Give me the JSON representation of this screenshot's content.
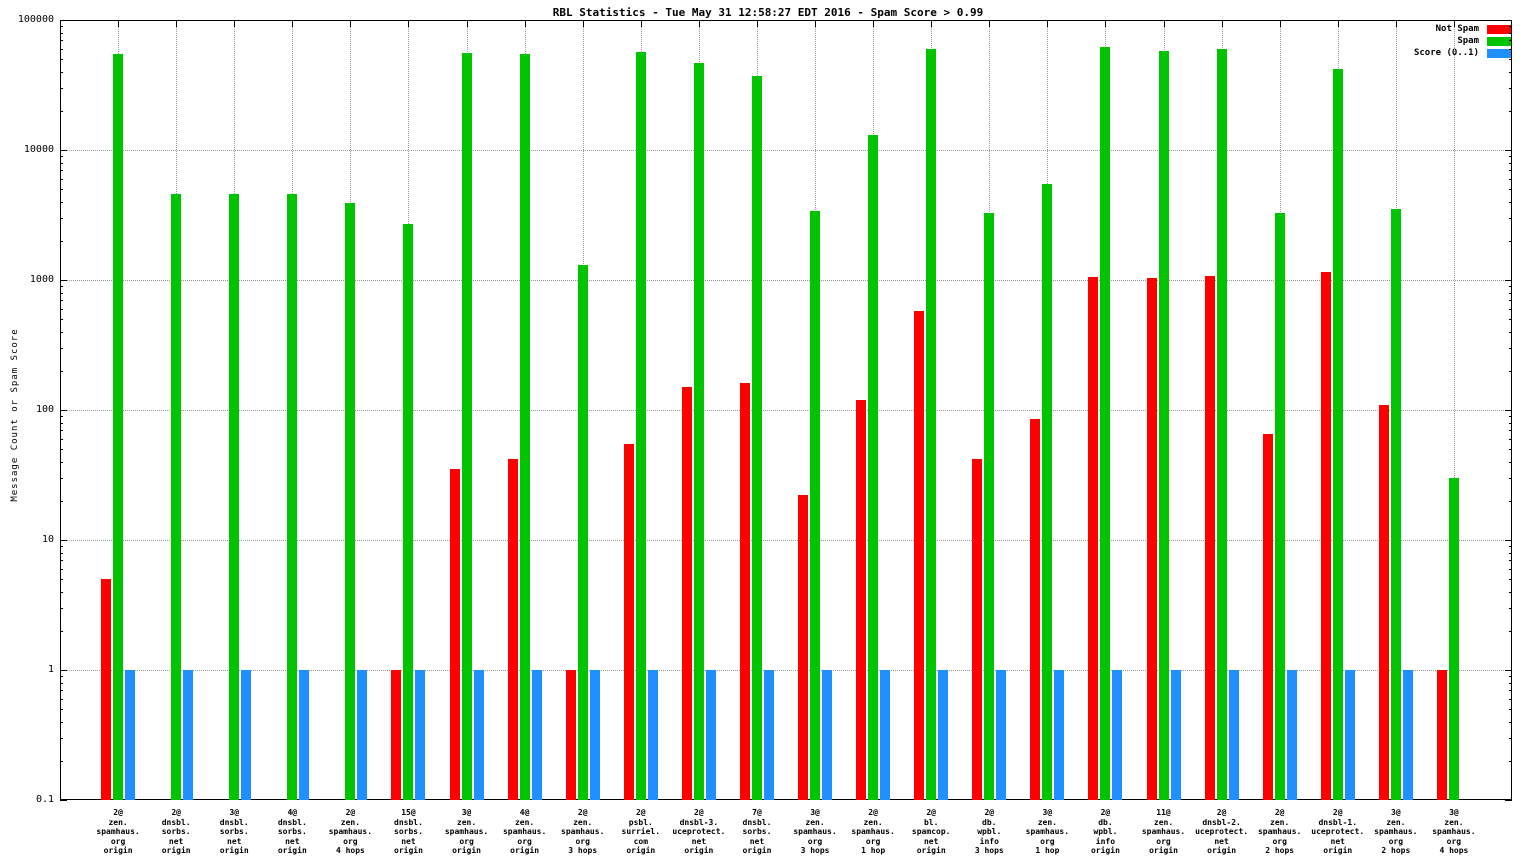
{
  "chart_data": {
    "type": "bar",
    "title": "RBL Statistics - Tue May 31 12:58:27 EDT 2016 - Spam Score > 0.99",
    "ylabel": "Message Count or Spam Score",
    "yscale": "log",
    "ylim": [
      0.1,
      100000
    ],
    "yticks": [
      "100000",
      "10000",
      "1000",
      "100",
      "10",
      "1",
      "0.1"
    ],
    "grid": true,
    "legend_position": "top-right",
    "legend": [
      {
        "name": "Not Spam",
        "color": "#ff0000"
      },
      {
        "name": "Spam",
        "color": "#00c400"
      },
      {
        "name": "Score (0..1)",
        "color": "#1e90ff"
      }
    ],
    "categories": [
      {
        "lines": [
          "2@",
          "zen.",
          "spamhaus.",
          "org",
          "origin"
        ]
      },
      {
        "lines": [
          "2@",
          "dnsbl.",
          "sorbs.",
          "net",
          "origin"
        ]
      },
      {
        "lines": [
          "3@",
          "dnsbl.",
          "sorbs.",
          "net",
          "origin"
        ]
      },
      {
        "lines": [
          "4@",
          "dnsbl.",
          "sorbs.",
          "net",
          "origin"
        ]
      },
      {
        "lines": [
          "2@",
          "zen.",
          "spamhaus.",
          "org",
          "4 hops"
        ]
      },
      {
        "lines": [
          "15@",
          "dnsbl.",
          "sorbs.",
          "net",
          "origin"
        ]
      },
      {
        "lines": [
          "3@",
          "zen.",
          "spamhaus.",
          "org",
          "origin"
        ]
      },
      {
        "lines": [
          "4@",
          "zen.",
          "spamhaus.",
          "org",
          "origin"
        ]
      },
      {
        "lines": [
          "2@",
          "zen.",
          "spamhaus.",
          "org",
          "3 hops"
        ]
      },
      {
        "lines": [
          "2@",
          "psbl.",
          "surriel.",
          "com",
          "origin"
        ]
      },
      {
        "lines": [
          "2@",
          "dnsbl-3.",
          "uceprotect.",
          "net",
          "origin"
        ]
      },
      {
        "lines": [
          "7@",
          "dnsbl.",
          "sorbs.",
          "net",
          "origin"
        ]
      },
      {
        "lines": [
          "3@",
          "zen.",
          "spamhaus.",
          "org",
          "3 hops"
        ]
      },
      {
        "lines": [
          "2@",
          "zen.",
          "spamhaus.",
          "org",
          "1 hop"
        ]
      },
      {
        "lines": [
          "2@",
          "bl.",
          "spamcop.",
          "net",
          "origin"
        ]
      },
      {
        "lines": [
          "2@",
          "db.",
          "wpbl.",
          "info",
          "3 hops"
        ]
      },
      {
        "lines": [
          "3@",
          "zen.",
          "spamhaus.",
          "org",
          "1 hop"
        ]
      },
      {
        "lines": [
          "2@",
          "db.",
          "wpbl.",
          "info",
          "origin"
        ]
      },
      {
        "lines": [
          "11@",
          "zen.",
          "spamhaus.",
          "org",
          "origin"
        ]
      },
      {
        "lines": [
          "2@",
          "dnsbl-2.",
          "uceprotect.",
          "net",
          "origin"
        ]
      },
      {
        "lines": [
          "2@",
          "zen.",
          "spamhaus.",
          "org",
          "2 hops"
        ]
      },
      {
        "lines": [
          "2@",
          "dnsbl-1.",
          "uceprotect.",
          "net",
          "origin"
        ]
      },
      {
        "lines": [
          "3@",
          "zen.",
          "spamhaus.",
          "org",
          "2 hops"
        ]
      },
      {
        "lines": [
          "3@",
          "zen.",
          "spamhaus.",
          "org",
          "4 hops"
        ]
      }
    ],
    "series": [
      {
        "name": "Not Spam",
        "color": "#ff0000",
        "values": [
          5,
          null,
          null,
          null,
          null,
          1,
          35,
          42,
          1,
          55,
          150,
          160,
          22,
          120,
          580,
          42,
          85,
          1050,
          1030,
          1080,
          65,
          1150,
          110,
          1
        ]
      },
      {
        "name": "Spam",
        "color": "#00c400",
        "values": [
          55000,
          4600,
          4600,
          4600,
          3900,
          2700,
          56000,
          55000,
          1300,
          57000,
          47000,
          37000,
          3400,
          13000,
          60000,
          3300,
          5500,
          62000,
          58000,
          60000,
          3300,
          42000,
          3500,
          30
        ]
      },
      {
        "name": "Score (0..1)",
        "color": "#1e90ff",
        "values": [
          1,
          1,
          1,
          1,
          1,
          1,
          1,
          1,
          1,
          1,
          1,
          1,
          1,
          1,
          1,
          1,
          1,
          1,
          1,
          1,
          1,
          1,
          1,
          null
        ]
      }
    ]
  }
}
